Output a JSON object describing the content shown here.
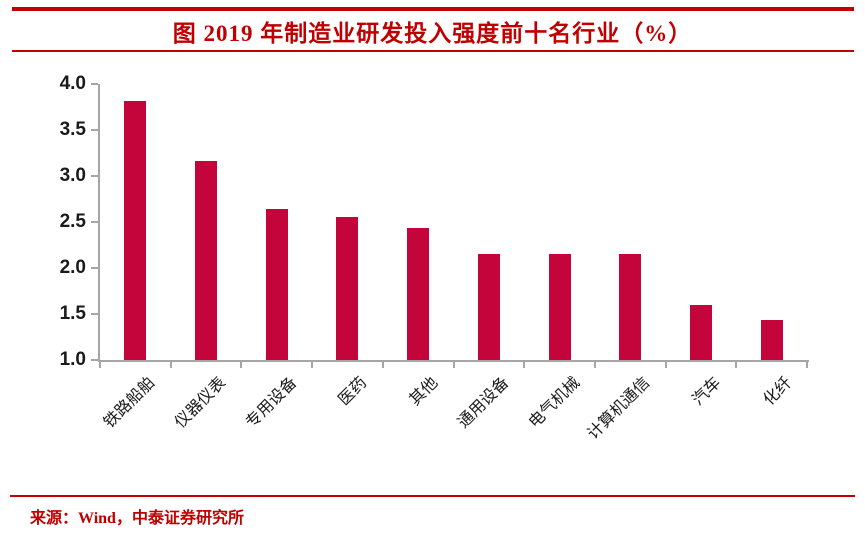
{
  "header": {
    "title": "图  2019 年制造业研发投入强度前十名行业（%）"
  },
  "footer": {
    "source": "来源：Wind，中泰证券研究所"
  },
  "colors": {
    "bar": "#C4053C",
    "rule_red": "#C00000",
    "title_red": "#C00000",
    "axis_gray": "#A6A6A6",
    "tick_label_black": "#1A1A1A"
  },
  "chart_data": {
    "type": "bar",
    "title": "图  2019 年制造业研发投入强度前十名行业（%）",
    "xlabel": "",
    "ylabel": "",
    "categories": [
      "铁路船舶",
      "仪器仪表",
      "专用设备",
      "医药",
      "其他",
      "通用设备",
      "电气机械",
      "计算机通信",
      "汽车",
      "化纤"
    ],
    "values": [
      3.81,
      3.16,
      2.64,
      2.55,
      2.44,
      2.15,
      2.15,
      2.15,
      1.6,
      1.43
    ],
    "ylim": [
      1.0,
      4.0
    ],
    "ytick_labels": [
      "4.0",
      "3.5",
      "3.0",
      "2.5",
      "2.0",
      "1.5",
      "1.0"
    ],
    "grid": false,
    "legend": false,
    "bar_orientation": "vertical",
    "x_label_rotation_deg": 45
  }
}
